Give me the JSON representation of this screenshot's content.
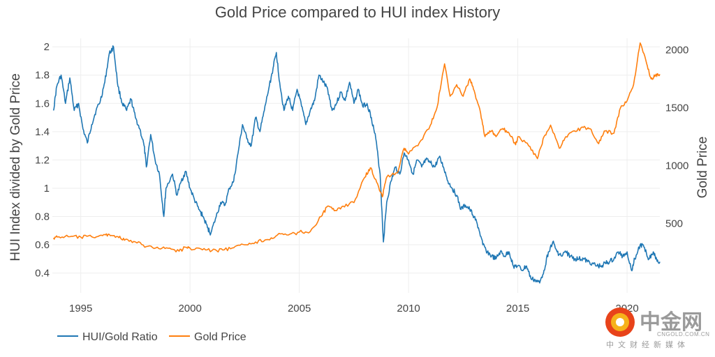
{
  "chart_data": {
    "type": "line",
    "title": "Gold Price compared to HUI index History",
    "y_left_label": "HUI Index divided by Gold Price",
    "y_right_label": "Gold Price",
    "x_range": [
      1993.7,
      2021.5
    ],
    "x_ticks": [
      "1995",
      "2000",
      "2005",
      "2010",
      "2015",
      "2020"
    ],
    "y_left_range": [
      0.26,
      2.06
    ],
    "y_left_ticks": [
      "0.4",
      "0.6",
      "0.8",
      "1",
      "1.2",
      "1.4",
      "1.6",
      "1.8",
      "2"
    ],
    "y_right_range": [
      -100,
      2100
    ],
    "y_right_ticks": [
      "500",
      "1000",
      "1500",
      "2000"
    ],
    "grid": true,
    "legend_position": "bottom-left",
    "series": [
      {
        "name": "HUI/Gold Ratio",
        "axis": "left",
        "color": "#1f77b4",
        "points": [
          [
            1993.75,
            1.55
          ],
          [
            1993.9,
            1.72
          ],
          [
            1994.1,
            1.8
          ],
          [
            1994.3,
            1.6
          ],
          [
            1994.5,
            1.78
          ],
          [
            1994.7,
            1.55
          ],
          [
            1994.9,
            1.6
          ],
          [
            1995.1,
            1.42
          ],
          [
            1995.3,
            1.32
          ],
          [
            1995.5,
            1.45
          ],
          [
            1995.7,
            1.55
          ],
          [
            1995.9,
            1.62
          ],
          [
            1996.1,
            1.75
          ],
          [
            1996.3,
            1.95
          ],
          [
            1996.5,
            2.0
          ],
          [
            1996.7,
            1.72
          ],
          [
            1996.9,
            1.6
          ],
          [
            1997.1,
            1.55
          ],
          [
            1997.3,
            1.63
          ],
          [
            1997.5,
            1.5
          ],
          [
            1997.7,
            1.42
          ],
          [
            1997.9,
            1.3
          ],
          [
            1998.0,
            1.15
          ],
          [
            1998.2,
            1.38
          ],
          [
            1998.4,
            1.2
          ],
          [
            1998.6,
            1.1
          ],
          [
            1998.8,
            0.8
          ],
          [
            1998.9,
            1.0
          ],
          [
            1999.2,
            1.1
          ],
          [
            1999.4,
            0.95
          ],
          [
            1999.6,
            1.05
          ],
          [
            1999.8,
            1.12
          ],
          [
            2000.0,
            1.0
          ],
          [
            2000.2,
            0.92
          ],
          [
            2000.4,
            0.85
          ],
          [
            2000.6,
            0.8
          ],
          [
            2000.8,
            0.72
          ],
          [
            2000.95,
            0.68
          ],
          [
            2001.2,
            0.8
          ],
          [
            2001.4,
            0.9
          ],
          [
            2001.6,
            0.88
          ],
          [
            2001.8,
            1.0
          ],
          [
            2002.0,
            1.05
          ],
          [
            2002.2,
            1.25
          ],
          [
            2002.4,
            1.45
          ],
          [
            2002.6,
            1.35
          ],
          [
            2002.8,
            1.3
          ],
          [
            2003.0,
            1.5
          ],
          [
            2003.2,
            1.4
          ],
          [
            2003.4,
            1.55
          ],
          [
            2003.6,
            1.7
          ],
          [
            2003.8,
            1.85
          ],
          [
            2003.95,
            1.96
          ],
          [
            2004.1,
            1.75
          ],
          [
            2004.3,
            1.55
          ],
          [
            2004.5,
            1.65
          ],
          [
            2004.7,
            1.55
          ],
          [
            2004.9,
            1.7
          ],
          [
            2005.1,
            1.58
          ],
          [
            2005.3,
            1.45
          ],
          [
            2005.5,
            1.55
          ],
          [
            2005.7,
            1.62
          ],
          [
            2005.9,
            1.8
          ],
          [
            2006.1,
            1.75
          ],
          [
            2006.3,
            1.7
          ],
          [
            2006.5,
            1.55
          ],
          [
            2006.7,
            1.6
          ],
          [
            2006.9,
            1.68
          ],
          [
            2007.1,
            1.62
          ],
          [
            2007.3,
            1.75
          ],
          [
            2007.5,
            1.6
          ],
          [
            2007.7,
            1.7
          ],
          [
            2007.9,
            1.58
          ],
          [
            2008.1,
            1.6
          ],
          [
            2008.3,
            1.5
          ],
          [
            2008.5,
            1.35
          ],
          [
            2008.7,
            1.1
          ],
          [
            2008.85,
            0.62
          ],
          [
            2009.0,
            0.9
          ],
          [
            2009.2,
            1.05
          ],
          [
            2009.4,
            1.15
          ],
          [
            2009.6,
            1.1
          ],
          [
            2009.8,
            1.25
          ],
          [
            2010.0,
            1.2
          ],
          [
            2010.2,
            1.1
          ],
          [
            2010.4,
            1.2
          ],
          [
            2010.6,
            1.15
          ],
          [
            2010.8,
            1.2
          ],
          [
            2011.0,
            1.18
          ],
          [
            2011.2,
            1.15
          ],
          [
            2011.4,
            1.22
          ],
          [
            2011.6,
            1.15
          ],
          [
            2011.8,
            1.05
          ],
          [
            2012.0,
            1.0
          ],
          [
            2012.2,
            0.95
          ],
          [
            2012.4,
            0.85
          ],
          [
            2012.6,
            0.88
          ],
          [
            2012.8,
            0.85
          ],
          [
            2013.0,
            0.8
          ],
          [
            2013.2,
            0.72
          ],
          [
            2013.4,
            0.6
          ],
          [
            2013.6,
            0.55
          ],
          [
            2013.8,
            0.52
          ],
          [
            2014.0,
            0.5
          ],
          [
            2014.2,
            0.55
          ],
          [
            2014.4,
            0.52
          ],
          [
            2014.6,
            0.55
          ],
          [
            2014.8,
            0.45
          ],
          [
            2015.0,
            0.45
          ],
          [
            2015.2,
            0.42
          ],
          [
            2015.4,
            0.45
          ],
          [
            2015.6,
            0.36
          ],
          [
            2015.8,
            0.35
          ],
          [
            2016.0,
            0.33
          ],
          [
            2016.2,
            0.42
          ],
          [
            2016.4,
            0.55
          ],
          [
            2016.6,
            0.62
          ],
          [
            2016.8,
            0.55
          ],
          [
            2017.0,
            0.52
          ],
          [
            2017.2,
            0.55
          ],
          [
            2017.4,
            0.52
          ],
          [
            2017.6,
            0.5
          ],
          [
            2017.8,
            0.5
          ],
          [
            2018.0,
            0.5
          ],
          [
            2018.2,
            0.48
          ],
          [
            2018.4,
            0.47
          ],
          [
            2018.6,
            0.45
          ],
          [
            2018.8,
            0.45
          ],
          [
            2019.0,
            0.47
          ],
          [
            2019.2,
            0.48
          ],
          [
            2019.4,
            0.5
          ],
          [
            2019.6,
            0.55
          ],
          [
            2019.8,
            0.52
          ],
          [
            2020.0,
            0.55
          ],
          [
            2020.2,
            0.42
          ],
          [
            2020.35,
            0.5
          ],
          [
            2020.6,
            0.6
          ],
          [
            2020.8,
            0.58
          ],
          [
            2021.0,
            0.5
          ],
          [
            2021.2,
            0.55
          ],
          [
            2021.35,
            0.5
          ],
          [
            2021.5,
            0.48
          ]
        ]
      },
      {
        "name": "Gold Price",
        "axis": "right",
        "color": "#ff7f0e",
        "points": [
          [
            1993.75,
            375
          ],
          [
            1994.0,
            385
          ],
          [
            1994.5,
            385
          ],
          [
            1995.0,
            382
          ],
          [
            1995.5,
            385
          ],
          [
            1996.0,
            395
          ],
          [
            1996.3,
            405
          ],
          [
            1996.7,
            385
          ],
          [
            1997.0,
            355
          ],
          [
            1997.5,
            340
          ],
          [
            1998.0,
            300
          ],
          [
            1998.5,
            295
          ],
          [
            1999.0,
            285
          ],
          [
            1999.5,
            260
          ],
          [
            1999.8,
            295
          ],
          [
            2000.0,
            285
          ],
          [
            2000.5,
            280
          ],
          [
            2001.0,
            265
          ],
          [
            2001.5,
            270
          ],
          [
            2002.0,
            290
          ],
          [
            2002.5,
            315
          ],
          [
            2003.0,
            340
          ],
          [
            2003.5,
            360
          ],
          [
            2004.0,
            400
          ],
          [
            2004.5,
            400
          ],
          [
            2005.0,
            425
          ],
          [
            2005.5,
            430
          ],
          [
            2006.0,
            560
          ],
          [
            2006.3,
            650
          ],
          [
            2006.6,
            610
          ],
          [
            2007.0,
            650
          ],
          [
            2007.5,
            680
          ],
          [
            2008.0,
            900
          ],
          [
            2008.25,
            980
          ],
          [
            2008.5,
            880
          ],
          [
            2008.8,
            730
          ],
          [
            2009.0,
            900
          ],
          [
            2009.5,
            940
          ],
          [
            2009.8,
            1150
          ],
          [
            2010.0,
            1100
          ],
          [
            2010.5,
            1200
          ],
          [
            2011.0,
            1350
          ],
          [
            2011.3,
            1500
          ],
          [
            2011.65,
            1880
          ],
          [
            2011.9,
            1600
          ],
          [
            2012.2,
            1700
          ],
          [
            2012.5,
            1600
          ],
          [
            2012.8,
            1750
          ],
          [
            2013.0,
            1650
          ],
          [
            2013.3,
            1450
          ],
          [
            2013.5,
            1250
          ],
          [
            2013.8,
            1300
          ],
          [
            2014.0,
            1250
          ],
          [
            2014.3,
            1320
          ],
          [
            2014.6,
            1280
          ],
          [
            2014.9,
            1180
          ],
          [
            2015.0,
            1250
          ],
          [
            2015.5,
            1170
          ],
          [
            2015.9,
            1060
          ],
          [
            2016.2,
            1250
          ],
          [
            2016.5,
            1350
          ],
          [
            2016.9,
            1150
          ],
          [
            2017.2,
            1250
          ],
          [
            2017.6,
            1300
          ],
          [
            2018.0,
            1330
          ],
          [
            2018.3,
            1320
          ],
          [
            2018.7,
            1190
          ],
          [
            2019.0,
            1300
          ],
          [
            2019.4,
            1280
          ],
          [
            2019.7,
            1500
          ],
          [
            2020.0,
            1560
          ],
          [
            2020.3,
            1700
          ],
          [
            2020.6,
            2060
          ],
          [
            2020.9,
            1880
          ],
          [
            2021.1,
            1750
          ],
          [
            2021.3,
            1780
          ],
          [
            2021.5,
            1790
          ]
        ]
      }
    ]
  },
  "watermark": {
    "brand": "中金网",
    "url": "CNGOLD.COM.CN",
    "tagline": "中文财经新媒体"
  }
}
